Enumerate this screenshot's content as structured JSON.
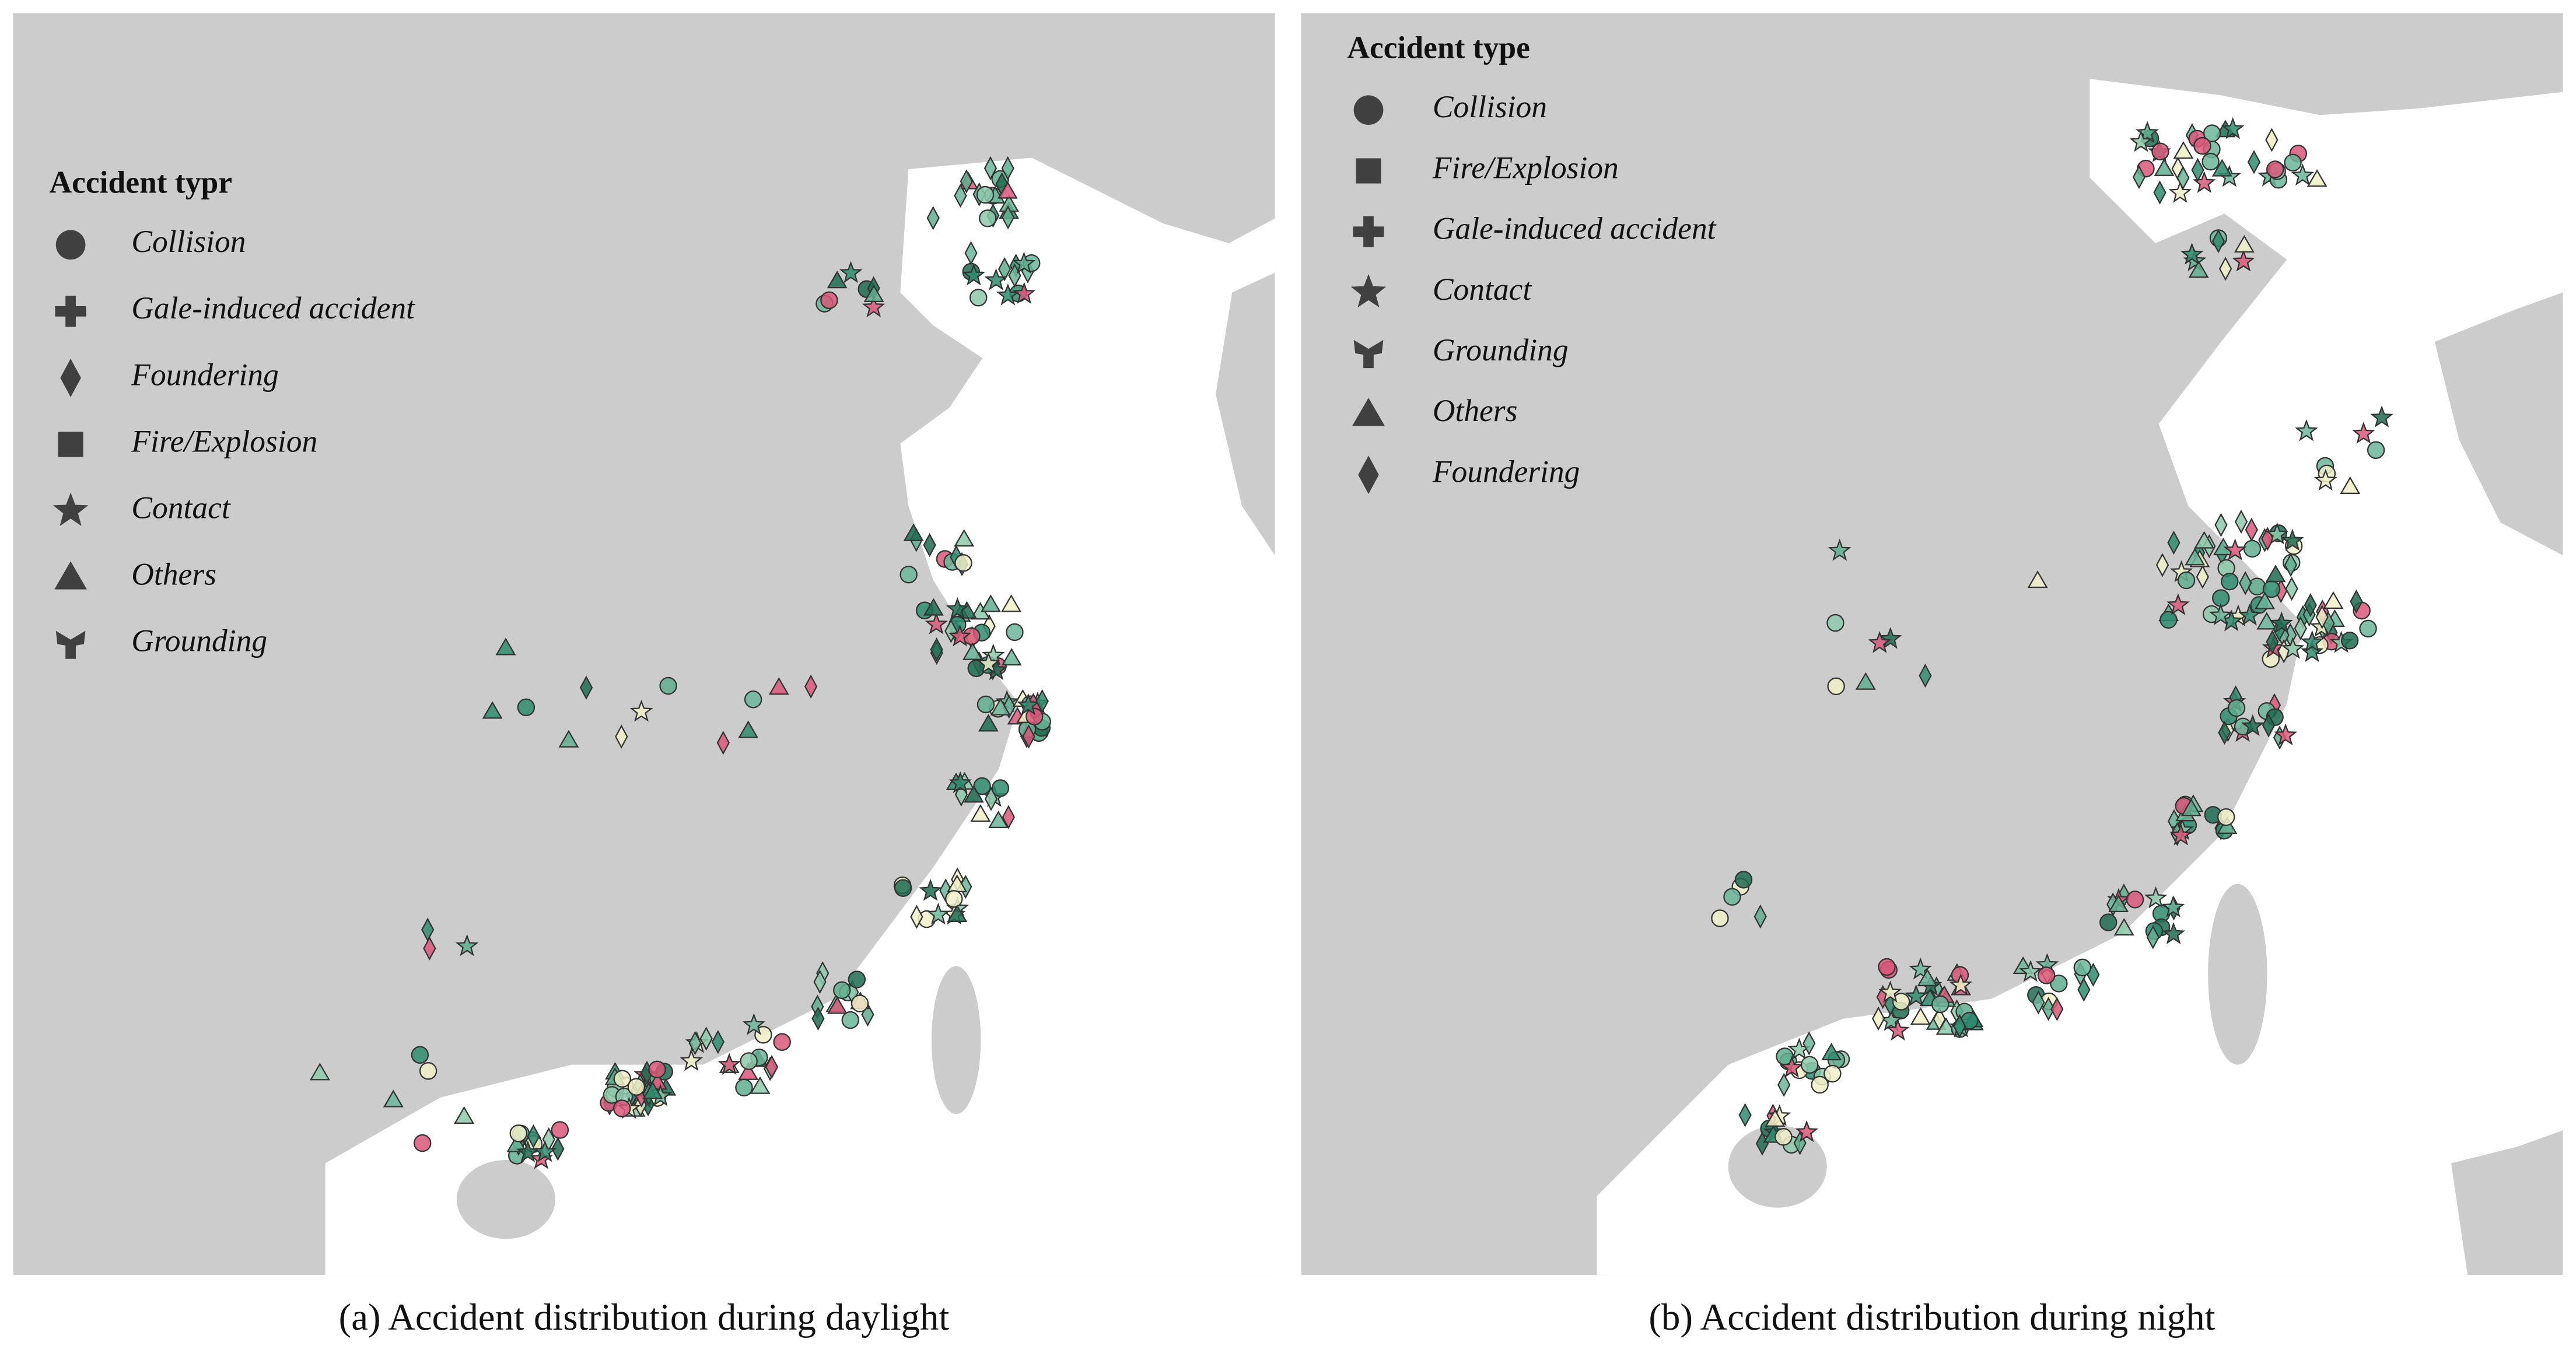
{
  "panels": [
    {
      "legend": {
        "title": "Accident typr",
        "items": [
          {
            "label": "Collision",
            "symbol": "circle"
          },
          {
            "label": "Gale-induced accident",
            "symbol": "plus"
          },
          {
            "label": "Foundering",
            "symbol": "diamond"
          },
          {
            "label": "Fire/Explosion",
            "symbol": "square"
          },
          {
            "label": "Contact",
            "symbol": "star"
          },
          {
            "label": "Others",
            "symbol": "triangle"
          },
          {
            "label": "Grounding",
            "symbol": "grounding"
          }
        ]
      },
      "caption": "(a) Accident distribution during daylight"
    },
    {
      "legend": {
        "title": "Accident type",
        "items": [
          {
            "label": "Collision",
            "symbol": "circle"
          },
          {
            "label": "Fire/Explosion",
            "symbol": "square"
          },
          {
            "label": "Gale-induced accident",
            "symbol": "plus"
          },
          {
            "label": "Contact",
            "symbol": "star"
          },
          {
            "label": "Grounding",
            "symbol": "grounding"
          },
          {
            "label": "Others",
            "symbol": "triangle"
          },
          {
            "label": "Foundering",
            "symbol": "diamond"
          }
        ]
      },
      "caption": "(b) Accident distribution during night"
    }
  ]
}
